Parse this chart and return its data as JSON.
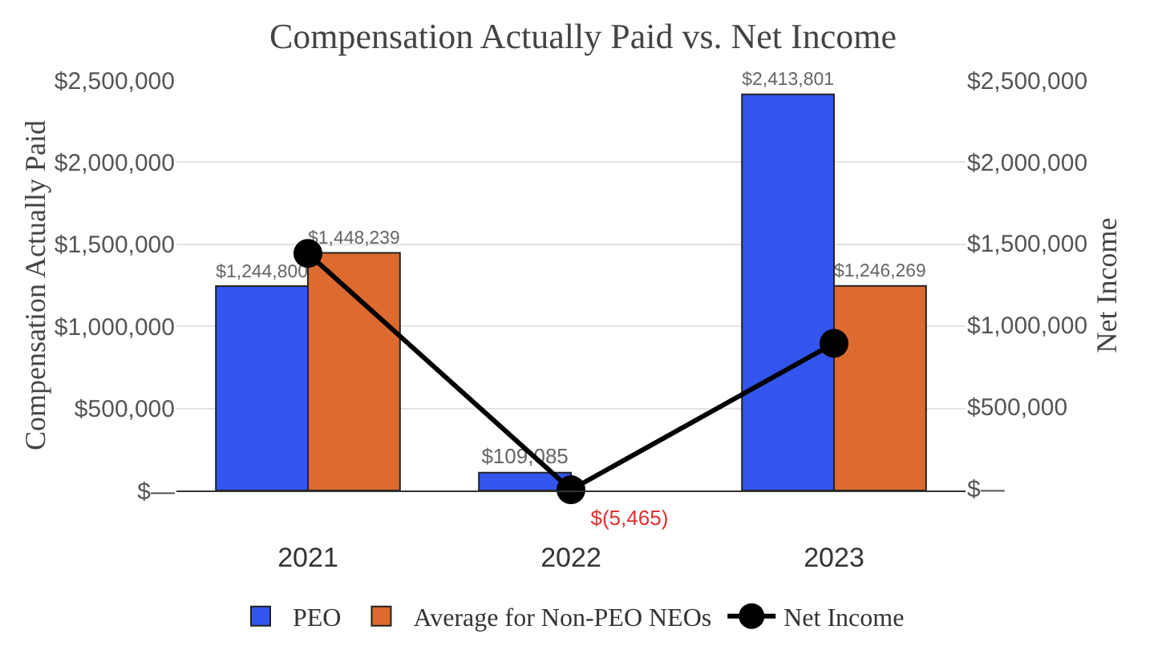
{
  "chart_data": {
    "type": "bar",
    "title": "Compensation Actually Paid vs. Net Income",
    "ylabel": "Compensation Actually Paid",
    "y2label": "Net Income",
    "categories": [
      "2021",
      "2022",
      "2023"
    ],
    "series": [
      {
        "name": "PEO",
        "color": "#3355ee",
        "values": [
          1244800,
          109085,
          2413801
        ],
        "value_labels": [
          "$1,244,800",
          "$109,085",
          "$2,413,801"
        ]
      },
      {
        "name": "Average for Non-PEO NEOs",
        "color": "#dd6a2e",
        "values": [
          1448239,
          null,
          1246269
        ],
        "value_labels": [
          "$1,448,239",
          null,
          "$1,246,269"
        ]
      },
      {
        "name": "Net Income",
        "type": "line",
        "axis": "y2",
        "color": "#000000",
        "marker": "circle",
        "values": [
          1440000,
          -5465,
          890000
        ],
        "value_labels": [
          null,
          "$(5,465)",
          null
        ]
      }
    ],
    "ylim": [
      0,
      2500000
    ],
    "yticks": [
      {
        "value": 0,
        "label": "$—"
      },
      {
        "value": 500000,
        "label": "$500,000"
      },
      {
        "value": 1000000,
        "label": "$1,000,000"
      },
      {
        "value": 1500000,
        "label": "$1,500,000"
      },
      {
        "value": 2000000,
        "label": "$2,000,000"
      },
      {
        "value": 2500000,
        "label": "$2,500,000"
      }
    ],
    "y2lim": [
      -10000,
      2500000
    ],
    "y2ticks": [
      {
        "value": 0,
        "label": "$—"
      },
      {
        "value": 500000,
        "label": "$500,000"
      },
      {
        "value": 1000000,
        "label": "$1,000,000"
      },
      {
        "value": 1500000,
        "label": "$1,500,000"
      },
      {
        "value": 2000000,
        "label": "$2,000,000"
      },
      {
        "value": 2500000,
        "label": "$2,500,000"
      }
    ],
    "grid": "y",
    "legend": "bottom"
  }
}
